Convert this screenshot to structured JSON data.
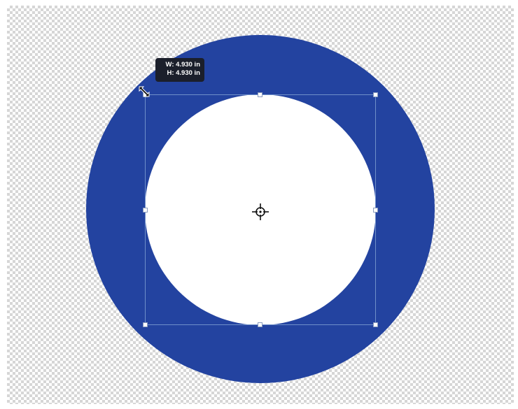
{
  "canvas": {
    "background": "transparent-checkerboard"
  },
  "shape": {
    "outer_color": "#2343a0",
    "inner_color": "#ffffff"
  },
  "transform": {
    "tooltip": {
      "width_label": "W: 4.930 in",
      "height_label": "H: 4.930 in"
    },
    "center_icon": "crosshair-icon",
    "cursor_icon": "diagonal-resize-cursor-icon"
  }
}
